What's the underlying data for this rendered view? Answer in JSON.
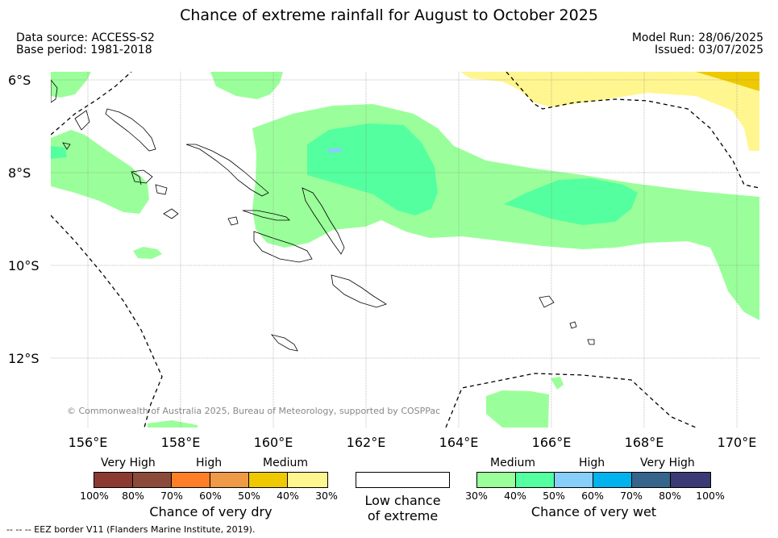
{
  "title": "Chance of extreme rainfall for August to October 2025",
  "meta_left": {
    "source": "Data source: ACCESS-S2",
    "base": "Base period: 1981-2018"
  },
  "meta_right": {
    "run": "Model Run: 28/06/2025",
    "issued": "Issued: 03/07/2025"
  },
  "lat_labels": [
    "6°S",
    "8°S",
    "10°S",
    "12°S"
  ],
  "lon_labels": [
    "156°E",
    "158°E",
    "160°E",
    "162°E",
    "164°E",
    "166°E",
    "168°E",
    "170°E"
  ],
  "copyright": "© Commonwealth of Australia 2025, Bureau of Meteorology, supported by COSPPac",
  "dry_legend": {
    "categories": [
      "Very High",
      "High",
      "Medium"
    ],
    "colors": [
      "#8b3a32",
      "#8b4a3a",
      "#ff7f27",
      "#ee9a47",
      "#eec900",
      "#fff68f"
    ],
    "ticks": [
      "100%",
      "80%",
      "70%",
      "60%",
      "50%",
      "40%",
      "30%"
    ],
    "caption": "Chance of very dry"
  },
  "low_legend": {
    "caption_line1": "Low chance",
    "caption_line2": "of extreme",
    "color": "#ffffff"
  },
  "wet_legend": {
    "categories": [
      "Medium",
      "High",
      "Very High"
    ],
    "colors": [
      "#9aff9a",
      "#54ff9f",
      "#87cefa",
      "#00b2ee",
      "#36648b",
      "#3b3a74"
    ],
    "ticks": [
      "30%",
      "40%",
      "50%",
      "60%",
      "70%",
      "80%",
      "100%"
    ],
    "caption": "Chance of very wet"
  },
  "footer": "--  --  -- EEZ border V11 (Flanders Marine Institute, 2019)."
}
